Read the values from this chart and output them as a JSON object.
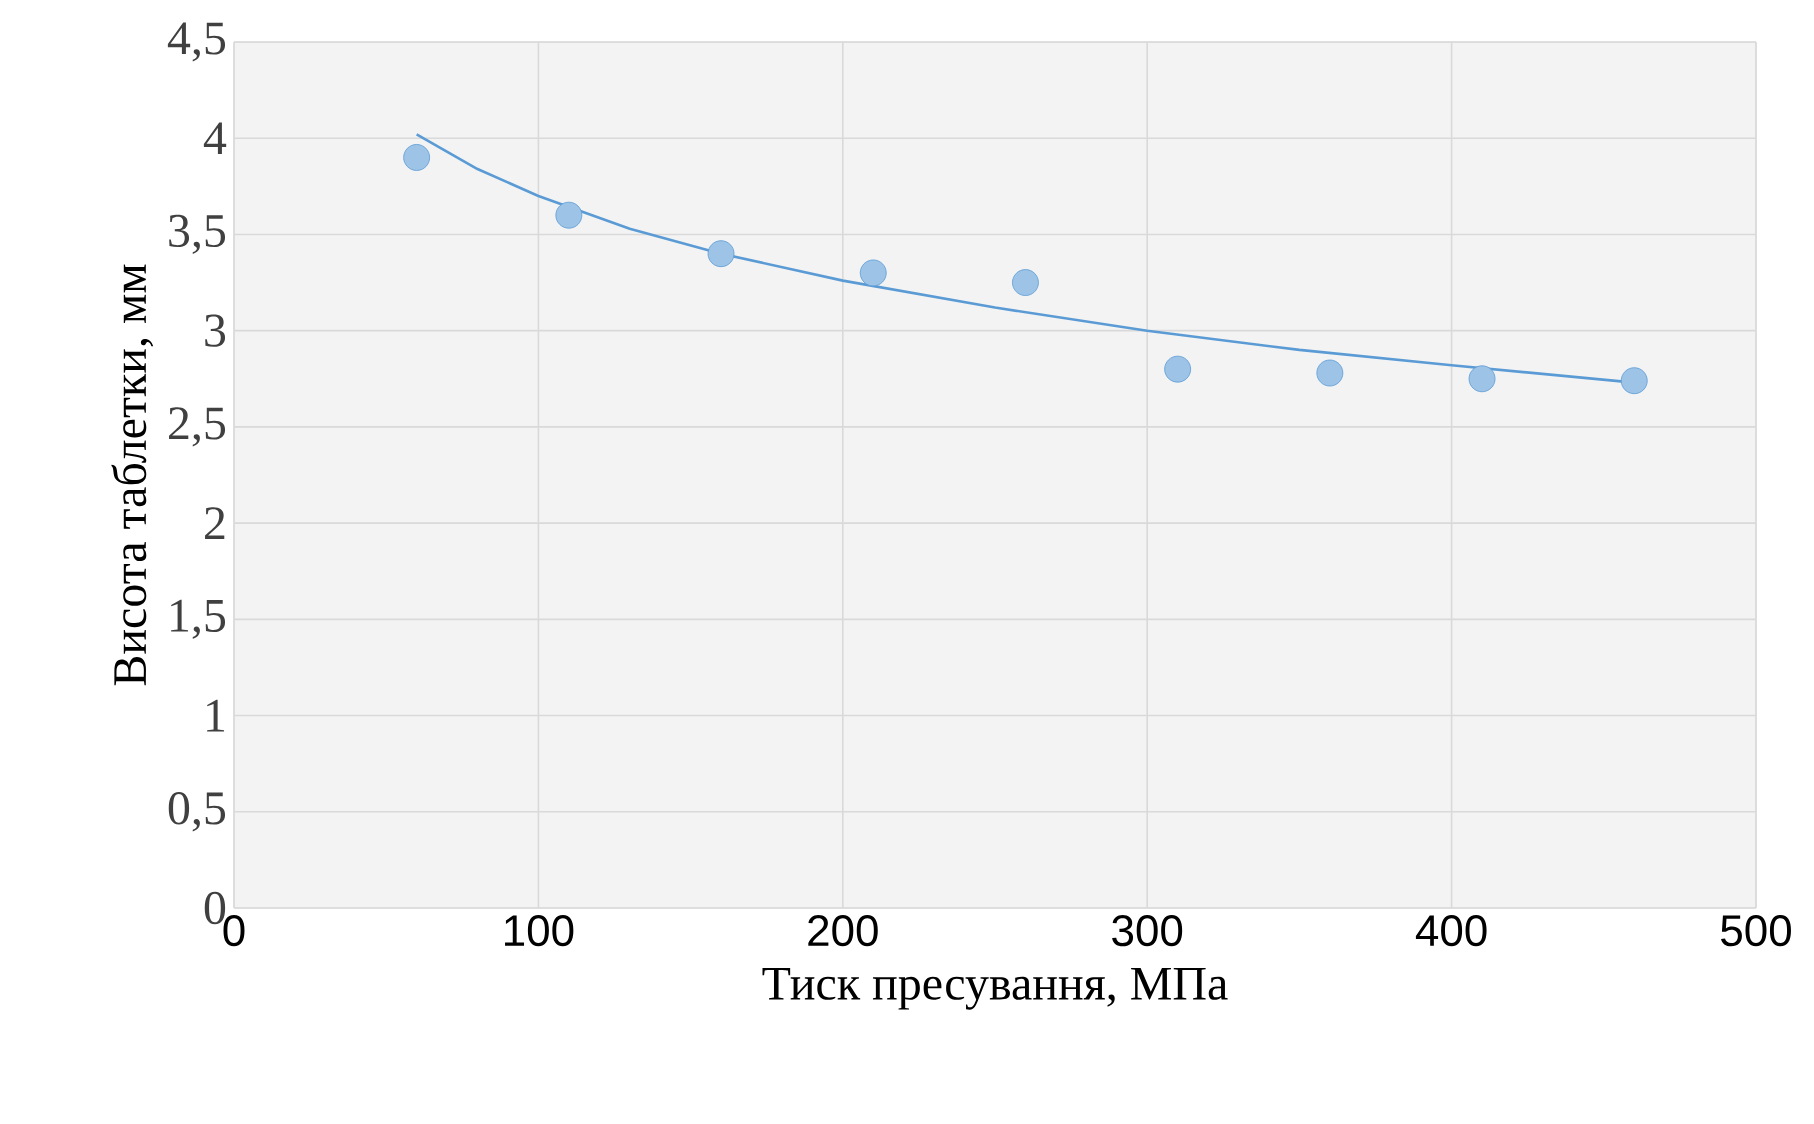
{
  "chart_data": {
    "type": "scatter",
    "xlabel": "Тиск пресування, МПа",
    "ylabel": "Висота таблетки, мм",
    "series": [
      {
        "color": "#5b9bd5",
        "marker": "circle",
        "x": [
          60,
          110,
          160,
          210,
          260,
          310,
          360,
          410,
          460
        ],
        "values": [
          3.9,
          3.6,
          3.4,
          3.3,
          3.25,
          2.8,
          2.78,
          2.75,
          2.74
        ]
      },
      {
        "type": "line",
        "color": "#5b9bd5",
        "marker": "none",
        "x": [
          60,
          80,
          100,
          130,
          160,
          200,
          250,
          300,
          350,
          400,
          460
        ],
        "values": [
          4.02,
          3.84,
          3.7,
          3.53,
          3.4,
          3.26,
          3.12,
          3.0,
          2.9,
          2.82,
          2.73
        ]
      }
    ],
    "xlim": [
      0,
      500
    ],
    "ylim": [
      0,
      4.5
    ],
    "xticks": [
      0,
      100,
      200,
      300,
      400,
      500
    ],
    "yticks": [
      0,
      {
        "value": 0.5,
        "label": "0,5"
      },
      1,
      {
        "value": 1.5,
        "label": "1,5"
      },
      2,
      {
        "value": 2.5,
        "label": "2,5"
      },
      3,
      {
        "value": 3.5,
        "label": "3,5"
      },
      4,
      {
        "value": 4.5,
        "label": "4,5"
      }
    ],
    "grid": true
  }
}
